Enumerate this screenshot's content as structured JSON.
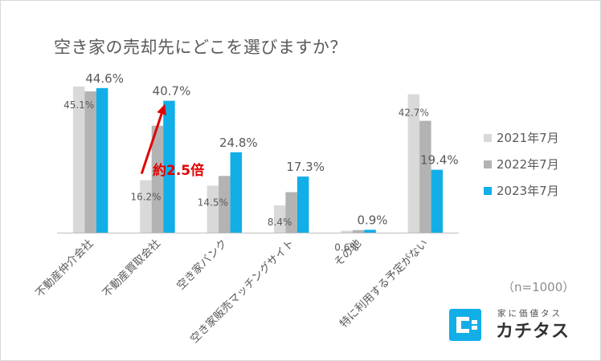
{
  "chart_data": {
    "type": "bar",
    "title": "空き家の売却先にどこを選びますか？",
    "categories": [
      "不動産仲介会社",
      "不動産買取会社",
      "空き家バンク",
      "空き家販売マッチングサイト",
      "その他",
      "特に利用する予定がない"
    ],
    "series": [
      {
        "name": "2021年7月",
        "color": "#d9d9d9",
        "values": [
          45.1,
          16.2,
          14.5,
          8.4,
          0.6,
          42.7
        ],
        "labels": [
          "45.1%",
          "16.2%",
          "14.5%",
          "8.4%",
          "0.6%",
          "42.7%"
        ]
      },
      {
        "name": "2022年7月",
        "color": "#b3b3b3",
        "values": [
          43.6,
          33.0,
          17.5,
          12.5,
          0.8,
          34.5
        ],
        "labels": [
          "",
          "",
          "",
          "",
          "",
          ""
        ]
      },
      {
        "name": "2023年7月",
        "color": "#12aee8",
        "values": [
          44.6,
          40.7,
          24.8,
          17.3,
          0.9,
          19.4
        ],
        "labels": [
          "44.6%",
          "40.7%",
          "24.8%",
          "17.3%",
          "0.9%",
          "19.4%"
        ]
      }
    ],
    "ylim": [
      0,
      50
    ],
    "grid": false,
    "legend": "right",
    "annotation": {
      "text": "約2.5倍",
      "category": "不動産買取会社",
      "from_value": 16.2,
      "to_value": 40.7,
      "color": "#e00000"
    }
  },
  "note": "（n=1000）",
  "brand": {
    "sub": "家に価値タス",
    "name": "カチタス",
    "color": "#12aee8"
  }
}
